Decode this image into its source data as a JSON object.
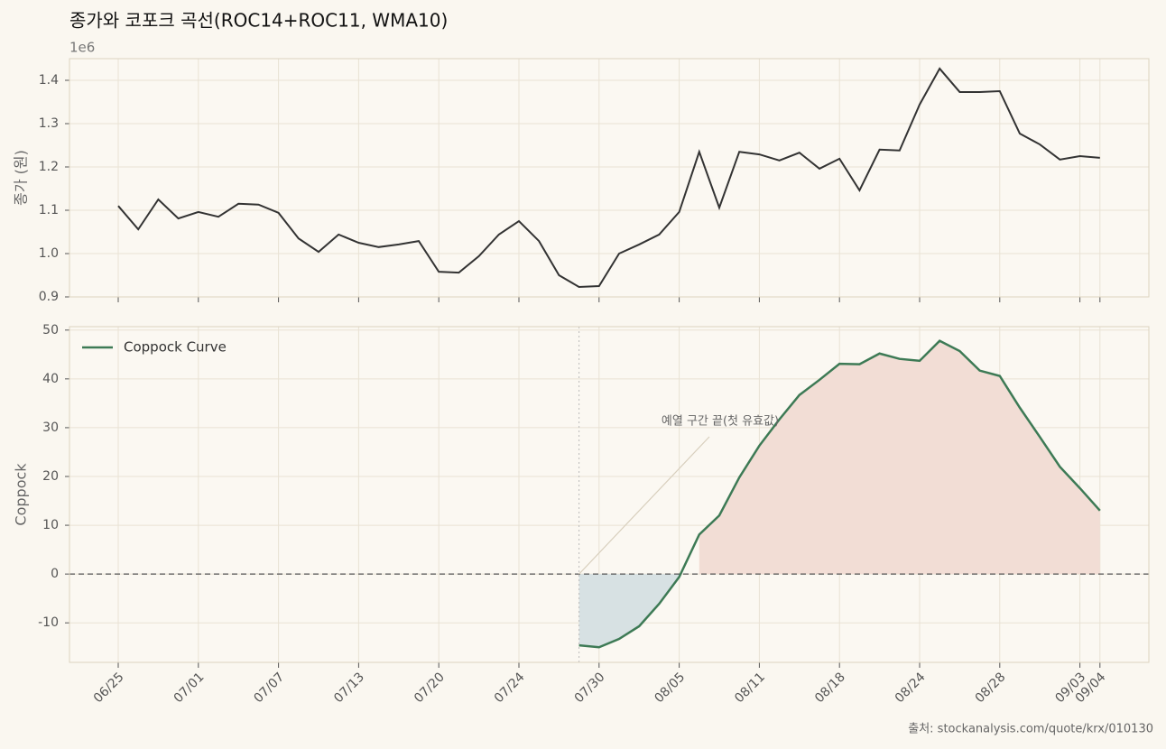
{
  "chart_data": [
    {
      "type": "line",
      "title": "종가와 코포크 곡선(ROC14+ROC11, WMA10)",
      "ylabel": "종가 (원)",
      "offset_text": "1e6",
      "color": "#333333",
      "values": [
        1.11,
        1.056,
        1.125,
        1.081,
        1.096,
        1.085,
        1.115,
        1.113,
        1.094,
        1.035,
        1.004,
        1.044,
        1.025,
        1.015,
        1.021,
        1.029,
        0.958,
        0.956,
        0.994,
        1.044,
        1.075,
        1.029,
        0.95,
        0.923,
        0.925,
        1.0,
        1.021,
        1.044,
        1.096,
        1.235,
        1.106,
        1.235,
        1.229,
        1.215,
        1.233,
        1.196,
        1.219,
        1.146,
        1.24,
        1.238,
        1.344,
        1.427,
        1.373,
        1.373,
        1.375,
        1.277,
        1.252,
        1.217,
        1.225,
        1.221
      ],
      "ylim": [
        0.9,
        1.45
      ],
      "yticks": [
        0.9,
        {
          "value": 1,
          "label": "1.0"
        },
        1.1,
        1.2,
        1.3,
        1.4
      ],
      "grid": true
    },
    {
      "type": "line",
      "ylabel": "Coppock",
      "legend": "upper left",
      "categories": [
        "06/25",
        null,
        null,
        null,
        "07/01",
        null,
        null,
        null,
        "07/07",
        null,
        null,
        null,
        "07/13",
        null,
        null,
        null,
        "07/20",
        null,
        null,
        null,
        "07/24",
        null,
        null,
        null,
        "07/30",
        null,
        null,
        null,
        "08/05",
        null,
        null,
        null,
        "08/11",
        null,
        null,
        null,
        "08/18",
        null,
        null,
        null,
        "08/24",
        null,
        null,
        null,
        "08/28",
        null,
        null,
        null,
        "09/03",
        "09/04"
      ],
      "series": [
        {
          "name": "Coppock Curve",
          "color": "#3d7a55",
          "values": [
            null,
            null,
            null,
            null,
            null,
            null,
            null,
            null,
            null,
            null,
            null,
            null,
            null,
            null,
            null,
            null,
            null,
            null,
            null,
            null,
            null,
            null,
            null,
            -14.6,
            -15.0,
            -13.3,
            -10.7,
            -6.1,
            -0.6,
            8.1,
            12.0,
            19.8,
            26.3,
            31.7,
            36.7,
            39.8,
            43.1,
            43.0,
            45.2,
            44.1,
            43.7,
            47.8,
            45.7,
            41.7,
            40.6,
            34.1,
            28.1,
            22.0,
            17.6,
            13.0
          ]
        }
      ],
      "positive_fill": "#f2ddd5",
      "negative_fill": "#d7e1e3",
      "annotation": "예열 구간 끝(첫 유효값)",
      "ylim": [
        -18.1,
        50.7
      ],
      "yticks": [
        -10,
        0,
        10,
        20,
        30,
        40,
        50
      ],
      "grid": true,
      "source": "출처: stockanalysis.com/quote/krx/010130"
    }
  ]
}
